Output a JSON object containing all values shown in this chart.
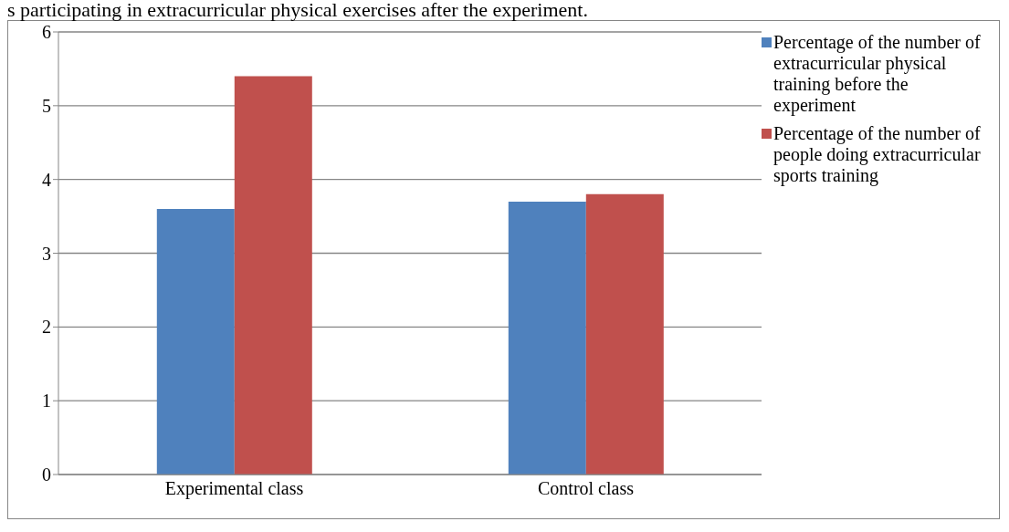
{
  "chart_data": {
    "type": "bar",
    "title": "s participating in extracurricular physical exercises after the experiment.",
    "categories": [
      "Experimental class",
      "Control class"
    ],
    "series": [
      {
        "name": "Percentage of the number of extracurricular physical training before the experiment",
        "color": "#4f81bd",
        "values": [
          3.6,
          3.7
        ]
      },
      {
        "name": "Percentage of the number of people doing extracurricular sports training",
        "color": "#c0504d",
        "values": [
          5.4,
          3.8
        ]
      }
    ],
    "ylim": [
      0,
      6
    ],
    "yticks": [
      0,
      1,
      2,
      3,
      4,
      5,
      6
    ],
    "grid": "y",
    "legend": "top right"
  }
}
